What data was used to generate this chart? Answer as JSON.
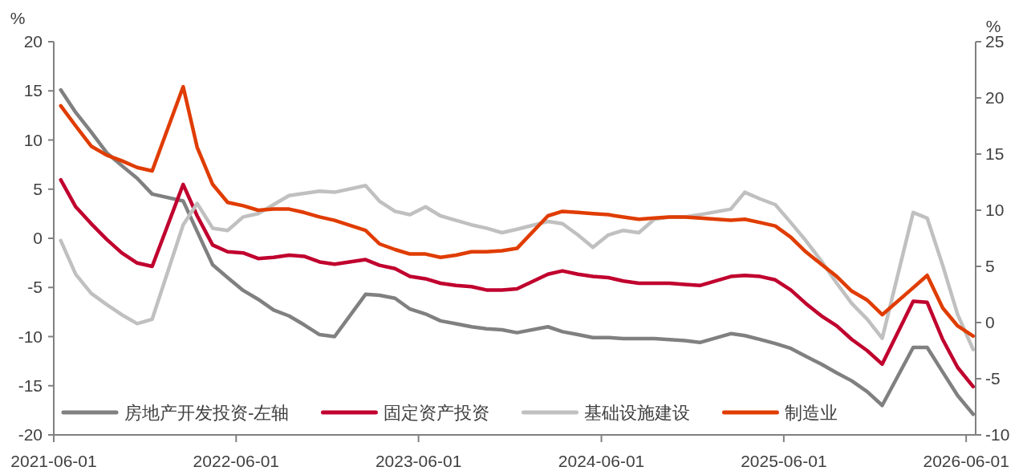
{
  "chart_data": {
    "type": "line",
    "x": [
      "2021-06-15",
      "2021-07-15",
      "2021-08-15",
      "2021-09-15",
      "2021-10-15",
      "2021-11-15",
      "2021-12-15",
      "2022-02-15",
      "2022-03-15",
      "2022-04-15",
      "2022-05-15",
      "2022-06-15",
      "2022-07-15",
      "2022-08-15",
      "2022-09-15",
      "2022-10-15",
      "2022-11-15",
      "2022-12-15",
      "2023-02-15",
      "2023-03-15",
      "2023-04-15",
      "2023-05-15",
      "2023-06-15",
      "2023-07-15",
      "2023-08-15",
      "2023-09-15",
      "2023-10-15",
      "2023-11-15",
      "2023-12-15",
      "2024-02-15",
      "2024-03-15",
      "2024-04-15",
      "2024-05-15",
      "2024-06-15",
      "2024-07-15",
      "2024-08-15",
      "2024-09-15",
      "2024-10-15",
      "2024-11-15",
      "2024-12-15",
      "2025-02-15",
      "2025-03-15",
      "2025-04-15",
      "2025-05-15",
      "2025-06-15",
      "2025-07-15",
      "2025-08-15",
      "2025-09-15",
      "2025-10-15",
      "2025-11-15",
      "2025-12-15",
      "2026-02-15",
      "2026-03-15",
      "2026-04-15",
      "2026-05-15",
      "2026-06-15"
    ],
    "series": [
      {
        "name": "房地产开发投资-左轴",
        "color": "#808080",
        "values": [
          15.1,
          12.8,
          10.8,
          8.7,
          7.4,
          6.1,
          4.5,
          3.8,
          0.7,
          -2.7,
          -4.0,
          -5.3,
          -6.2,
          -7.3,
          -7.9,
          -8.8,
          -9.8,
          -10.0,
          -5.7,
          -5.8,
          -6.1,
          -7.2,
          -7.7,
          -8.4,
          -8.7,
          -9.0,
          -9.2,
          -9.3,
          -9.6,
          -9.0,
          -9.5,
          -9.8,
          -10.1,
          -10.1,
          -10.2,
          -10.2,
          -10.2,
          -10.3,
          -10.4,
          -10.6,
          -9.7,
          -9.9,
          -10.3,
          -10.7,
          -11.2,
          -12.0,
          -12.8,
          -13.7,
          -14.5,
          -15.6,
          -17.0,
          -11.1,
          -11.1,
          -13.6,
          -16.0,
          -17.9
        ]
      },
      {
        "name": "固定资产投资",
        "color": "#c0002e",
        "axis": "y2",
        "values": [
          12.7,
          10.3,
          8.8,
          7.4,
          6.2,
          5.3,
          5.0,
          12.3,
          9.5,
          6.9,
          6.3,
          6.2,
          5.7,
          5.8,
          6.0,
          5.9,
          5.4,
          5.2,
          5.6,
          5.1,
          4.8,
          4.1,
          3.9,
          3.5,
          3.3,
          3.2,
          2.9,
          2.9,
          3.0,
          4.3,
          4.6,
          4.3,
          4.1,
          4.0,
          3.7,
          3.5,
          3.5,
          3.5,
          3.4,
          3.3,
          4.1,
          4.2,
          4.1,
          3.8,
          2.9,
          1.7,
          0.6,
          -0.3,
          -1.5,
          -2.5,
          -3.7,
          1.9,
          1.8,
          -1.5,
          -4.0,
          -5.7
        ]
      },
      {
        "name": "基础设施建设",
        "color": "#c0c0c0",
        "axis": "y2",
        "values": [
          7.3,
          4.3,
          2.6,
          1.6,
          0.7,
          -0.1,
          0.3,
          8.7,
          10.6,
          8.4,
          8.2,
          9.4,
          9.7,
          10.5,
          11.3,
          11.5,
          11.7,
          11.6,
          12.2,
          10.8,
          9.9,
          9.6,
          10.3,
          9.5,
          9.1,
          8.7,
          8.4,
          8.0,
          8.3,
          9.0,
          8.8,
          7.8,
          6.7,
          7.8,
          8.2,
          8.0,
          9.2,
          9.4,
          9.4,
          9.6,
          10.1,
          11.6,
          11.0,
          10.5,
          8.9,
          7.3,
          5.5,
          3.5,
          1.7,
          0.3,
          -1.4,
          9.8,
          9.3,
          5.1,
          0.7,
          -2.4
        ]
      },
      {
        "name": "制造业",
        "color": "#e03c00",
        "axis": "y2",
        "values": [
          19.3,
          17.5,
          15.7,
          14.9,
          14.4,
          13.8,
          13.5,
          21.0,
          15.6,
          12.3,
          10.7,
          10.4,
          10.0,
          10.1,
          10.1,
          9.8,
          9.4,
          9.1,
          8.2,
          7.0,
          6.5,
          6.1,
          6.1,
          5.8,
          6.0,
          6.3,
          6.3,
          6.4,
          6.6,
          9.5,
          9.9,
          9.8,
          9.7,
          9.6,
          9.4,
          9.2,
          9.3,
          9.4,
          9.4,
          9.3,
          9.1,
          9.2,
          8.9,
          8.6,
          7.6,
          6.3,
          5.2,
          4.1,
          2.8,
          2.0,
          0.7,
          3.1,
          4.2,
          1.3,
          -0.3,
          -1.2
        ]
      }
    ],
    "ylabel": "%",
    "y2label": "%",
    "xlim": [
      "2021-06-01",
      "2026-06-20"
    ],
    "xticks": [
      "2021-06-01",
      "2022-06-01",
      "2023-06-01",
      "2024-06-01",
      "2025-06-01",
      "2026-06-01"
    ],
    "ylim": [
      -20,
      20
    ],
    "yticks": [
      -20,
      -15,
      -10,
      -5,
      0,
      5,
      10,
      15,
      20
    ],
    "y2lim": [
      -10,
      25
    ],
    "y2ticks": [
      -10,
      -5,
      0,
      5,
      10,
      15,
      20,
      25
    ],
    "legend": "bottom",
    "grid": false,
    "marker": "none",
    "line_style": "solid"
  }
}
